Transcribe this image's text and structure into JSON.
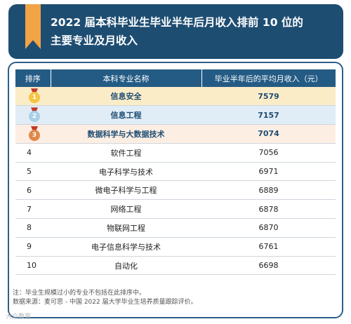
{
  "header": {
    "title_line1": "2022 届本科毕业生毕业半年后月收入排前 10 位的",
    "title_line2": "主要专业及月收入"
  },
  "table": {
    "columns": [
      "排序",
      "本科专业名称",
      "毕业半年后的平均月收入（元）"
    ],
    "rows": [
      {
        "rank": "1",
        "major": "信息安全",
        "income": "7579",
        "medal": "gold"
      },
      {
        "rank": "2",
        "major": "信息工程",
        "income": "7157",
        "medal": "silver"
      },
      {
        "rank": "3",
        "major": "数据科学与大数据技术",
        "income": "7074",
        "medal": "bronze"
      },
      {
        "rank": "4",
        "major": "软件工程",
        "income": "7056"
      },
      {
        "rank": "5",
        "major": "电子科学与技术",
        "income": "6971"
      },
      {
        "rank": "6",
        "major": "微电子科学与工程",
        "income": "6889"
      },
      {
        "rank": "7",
        "major": "网络工程",
        "income": "6878"
      },
      {
        "rank": "8",
        "major": "物联网工程",
        "income": "6870"
      },
      {
        "rank": "9",
        "major": "电子信息科学与技术",
        "income": "6761"
      },
      {
        "rank": "10",
        "major": "自动化",
        "income": "6698"
      }
    ]
  },
  "footnote": {
    "line1": "注：毕业生规模过小的专业不包括在此排序中。",
    "line2": "数据来源：麦可思 - 中国 2022 届大学毕业生培养质量跟踪评价。"
  },
  "watermark": "大众教育",
  "colors": {
    "header_bg": "#1e4d72",
    "bookmark": "#f0a445",
    "table_header": "#245b85",
    "gold_row": "#fbecc8",
    "silver_row": "#e1edf6",
    "bronze_row": "#fdeee3"
  }
}
